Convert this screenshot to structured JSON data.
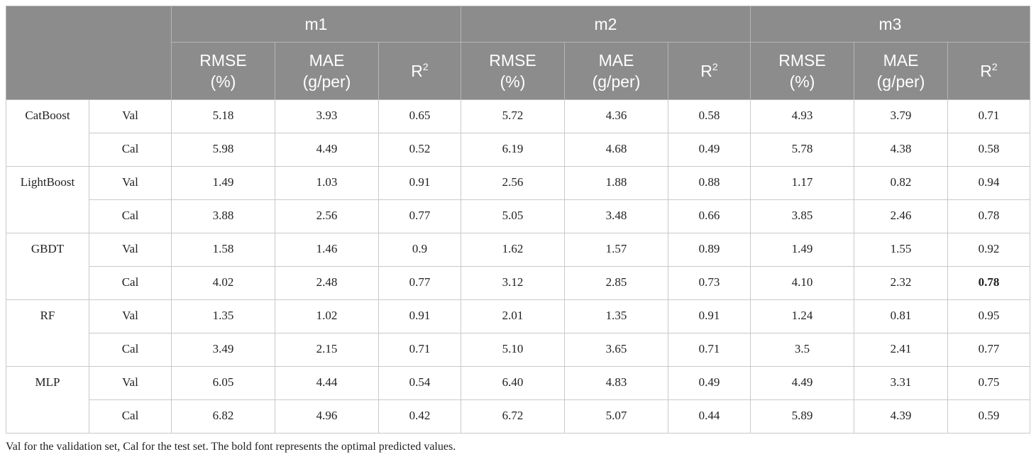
{
  "table": {
    "groups": [
      "m1",
      "m2",
      "m3"
    ],
    "metrics": [
      {
        "line1": "RMSE",
        "line2": "(%)"
      },
      {
        "line1": "MAE",
        "line2": "(g/per)"
      },
      {
        "line1": "R",
        "sup": "2"
      }
    ],
    "rows": [
      {
        "model": "CatBoost",
        "subsets": [
          {
            "set": "Val",
            "values": [
              "5.18",
              "3.93",
              "0.65",
              "5.72",
              "4.36",
              "0.58",
              "4.93",
              "3.79",
              "0.71"
            ]
          },
          {
            "set": "Cal",
            "values": [
              "5.98",
              "4.49",
              "0.52",
              "6.19",
              "4.68",
              "0.49",
              "5.78",
              "4.38",
              "0.58"
            ]
          }
        ]
      },
      {
        "model": "LightBoost",
        "subsets": [
          {
            "set": "Val",
            "values": [
              "1.49",
              "1.03",
              "0.91",
              "2.56",
              "1.88",
              "0.88",
              "1.17",
              "0.82",
              "0.94"
            ]
          },
          {
            "set": "Cal",
            "values": [
              "3.88",
              "2.56",
              "0.77",
              "5.05",
              "3.48",
              "0.66",
              "3.85",
              "2.46",
              "0.78"
            ]
          }
        ]
      },
      {
        "model": "GBDT",
        "subsets": [
          {
            "set": "Val",
            "values": [
              "1.58",
              "1.46",
              "0.9",
              "1.62",
              "1.57",
              "0.89",
              "1.49",
              "1.55",
              "0.92"
            ]
          },
          {
            "set": "Cal",
            "values": [
              "4.02",
              "2.48",
              "0.77",
              "3.12",
              "2.85",
              "0.73",
              "4.10",
              "2.32",
              "0.78"
            ],
            "bold_index": 8
          }
        ]
      },
      {
        "model": "RF",
        "subsets": [
          {
            "set": "Val",
            "values": [
              "1.35",
              "1.02",
              "0.91",
              "2.01",
              "1.35",
              "0.91",
              "1.24",
              "0.81",
              "0.95"
            ]
          },
          {
            "set": "Cal",
            "values": [
              "3.49",
              "2.15",
              "0.71",
              "5.10",
              "3.65",
              "0.71",
              "3.5",
              "2.41",
              "0.77"
            ]
          }
        ]
      },
      {
        "model": "MLP",
        "subsets": [
          {
            "set": "Val",
            "values": [
              "6.05",
              "4.44",
              "0.54",
              "6.40",
              "4.83",
              "0.49",
              "4.49",
              "3.31",
              "0.75"
            ]
          },
          {
            "set": "Cal",
            "values": [
              "6.82",
              "4.96",
              "0.42",
              "6.72",
              "5.07",
              "0.44",
              "5.89",
              "4.39",
              "0.59"
            ]
          }
        ]
      }
    ]
  },
  "footnote": "Val for the validation set, Cal for the test set. The bold font represents the optimal predicted values."
}
